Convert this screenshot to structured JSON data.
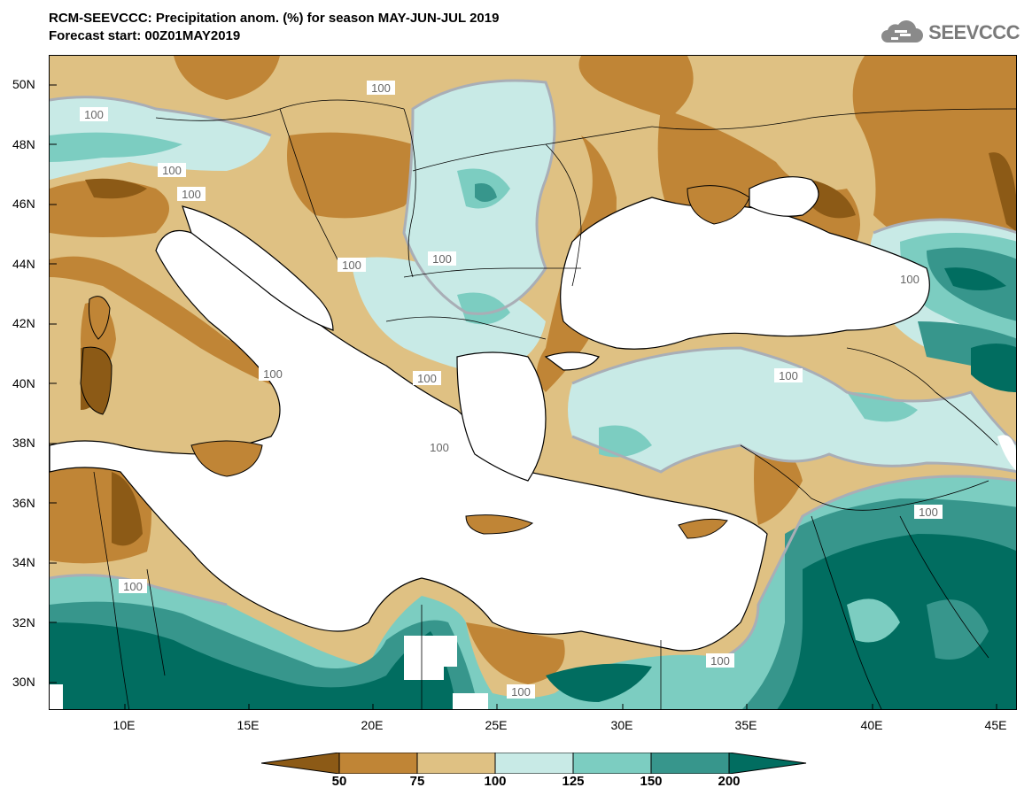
{
  "header": {
    "title": "RCM-SEEVCCC: Precipitation anom. (%) for season MAY-JUN-JUL 2019",
    "subtitle": "Forecast start: 00Z01MAY2019",
    "logo_text": "SEEVCCC"
  },
  "axes": {
    "lat_labels": [
      "50N",
      "48N",
      "46N",
      "44N",
      "42N",
      "40N",
      "38N",
      "36N",
      "34N",
      "32N",
      "30N"
    ],
    "lon_labels": [
      "10E",
      "15E",
      "20E",
      "25E",
      "30E",
      "35E",
      "40E",
      "45E"
    ]
  },
  "contour_label": "100",
  "colorbar": {
    "labels": [
      "50",
      "75",
      "100",
      "125",
      "150",
      "200"
    ],
    "colors": [
      "#8c5a16",
      "#c08536",
      "#dfc183",
      "#c8eae6",
      "#7ccdc1",
      "#37968c",
      "#016d60"
    ]
  },
  "colors": {
    "sea": "#ffffff",
    "coast": "#000000",
    "contour_100": "#a9aeb6"
  }
}
